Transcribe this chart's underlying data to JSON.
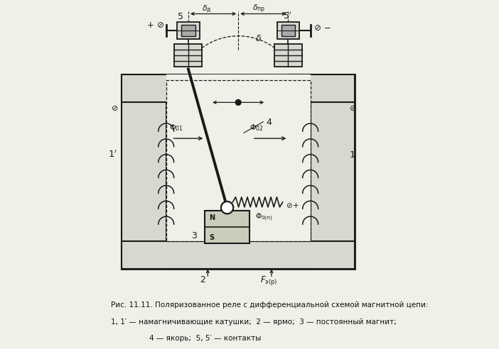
{
  "caption_line1": "Рис. 11.11. Поляризованное реле с дифференциальной схемой магнитной цепи:",
  "caption_line2": "1, 1′ — намагничивающие катушки;  2 — ярмо;  3 — постоянный магнит;",
  "caption_line3": "4 — якорь;  5, 5′ — контакты",
  "lc": "#1a1a1a",
  "bg": "#f0efe8",
  "coil_fill": "#d8d8d0",
  "magnet_fill": "#ccccbb"
}
